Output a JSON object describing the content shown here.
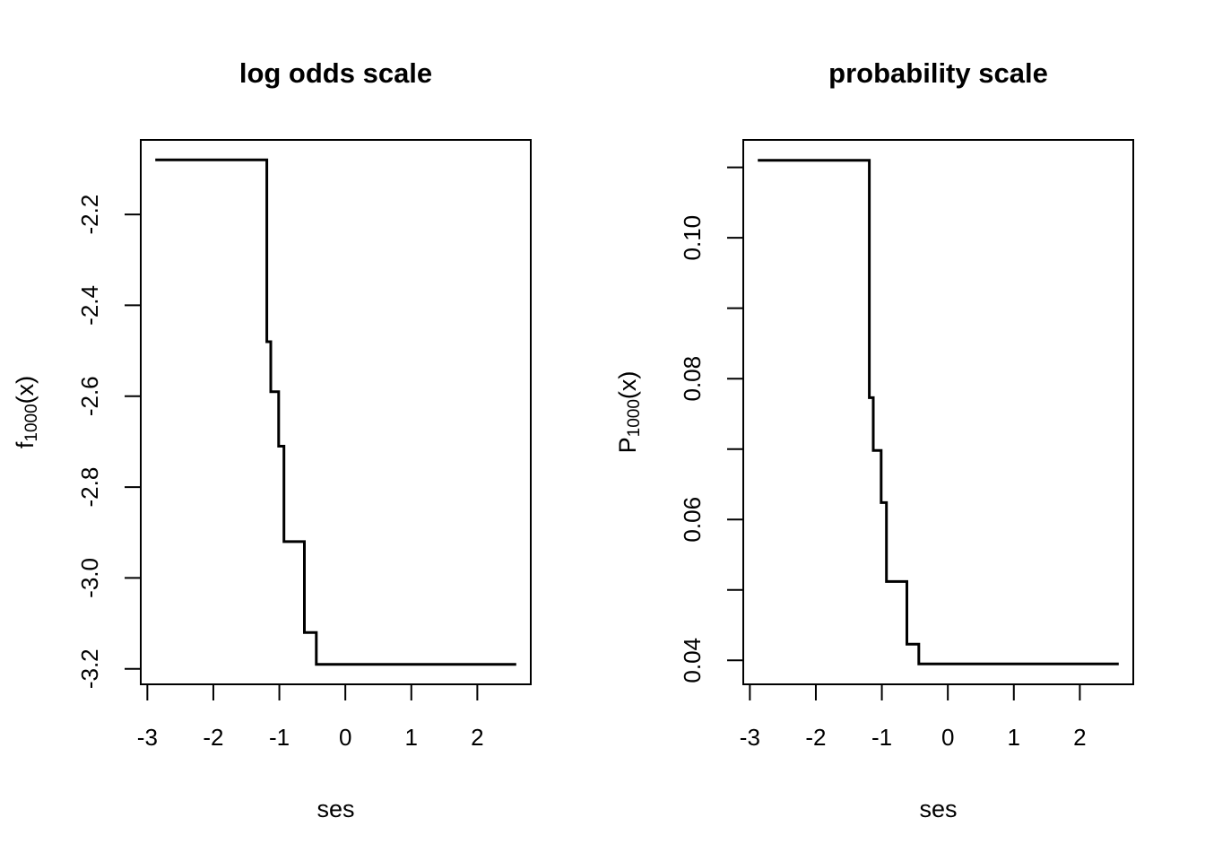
{
  "figure": {
    "background": "#ffffff",
    "foreground": "#000000"
  },
  "chart_data": [
    {
      "type": "line",
      "style": "step",
      "title": "log odds scale",
      "xlabel": "ses",
      "ylabel": {
        "base": "f",
        "sub": "1000",
        "rest": "(x)"
      },
      "line_color": "#000000",
      "grid": false,
      "legend": null,
      "xlim": [
        -3.1,
        2.81
      ],
      "ylim": [
        -3.234,
        -2.036
      ],
      "x_breakpoints": [
        -2.88,
        -1.19,
        -1.13,
        -1.01,
        -0.93,
        -0.62,
        -0.44,
        2.59
      ],
      "step_levels": [
        -2.08,
        -2.48,
        -2.59,
        -2.71,
        -2.92,
        -3.12,
        -3.19
      ],
      "xticks": [
        {
          "value": -3,
          "label": "-3"
        },
        {
          "value": -2,
          "label": "-2"
        },
        {
          "value": -1,
          "label": "-1"
        },
        {
          "value": 0,
          "label": "0"
        },
        {
          "value": 1,
          "label": "1"
        },
        {
          "value": 2,
          "label": "2"
        }
      ],
      "yticks": [
        {
          "value": -3.2,
          "label": "-3.2"
        },
        {
          "value": -3.0,
          "label": "-3.0"
        },
        {
          "value": -2.8,
          "label": "-2.8"
        },
        {
          "value": -2.6,
          "label": "-2.6"
        },
        {
          "value": -2.4,
          "label": "-2.4"
        },
        {
          "value": -2.2,
          "label": "-2.2"
        }
      ]
    },
    {
      "type": "line",
      "style": "step",
      "title": "probability scale",
      "xlabel": "ses",
      "ylabel": {
        "base": "P",
        "sub": "1000",
        "rest": "(x)"
      },
      "line_color": "#000000",
      "grid": false,
      "legend": null,
      "xlim": [
        -3.1,
        2.81
      ],
      "ylim": [
        0.0366,
        0.1139
      ],
      "x_breakpoints": [
        -2.88,
        -1.19,
        -1.13,
        -1.01,
        -0.93,
        -0.62,
        -0.44,
        2.59
      ],
      "step_levels": [
        0.111,
        0.0773,
        0.0698,
        0.0624,
        0.0512,
        0.0423,
        0.0395
      ],
      "xticks": [
        {
          "value": -3,
          "label": "-3"
        },
        {
          "value": -2,
          "label": "-2"
        },
        {
          "value": -1,
          "label": "-1"
        },
        {
          "value": 0,
          "label": "0"
        },
        {
          "value": 1,
          "label": "1"
        },
        {
          "value": 2,
          "label": "2"
        }
      ],
      "yticks": [
        {
          "value": 0.04,
          "label": "0.04"
        },
        {
          "value": 0.05,
          "label": ""
        },
        {
          "value": 0.06,
          "label": "0.06"
        },
        {
          "value": 0.07,
          "label": ""
        },
        {
          "value": 0.08,
          "label": "0.08"
        },
        {
          "value": 0.09,
          "label": ""
        },
        {
          "value": 0.1,
          "label": "0.10"
        },
        {
          "value": 0.11,
          "label": ""
        }
      ]
    }
  ]
}
